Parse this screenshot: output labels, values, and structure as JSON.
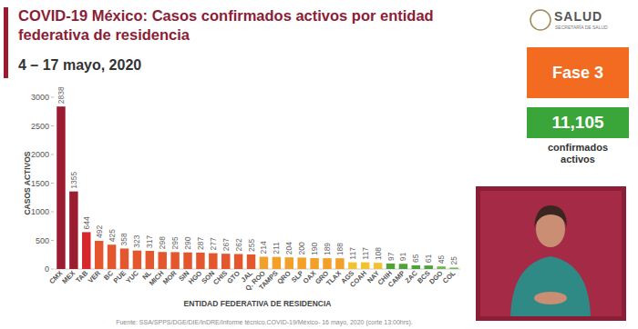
{
  "chart_data": {
    "type": "bar",
    "title": "COVID-19 México: Casos confirmados activos por entidad federativa de residencia",
    "subtitle": "4 – 17 mayo, 2020",
    "x_label": "ENTIDAD FEDERATIVA DE RESIDENCIA",
    "y_label": "CASOS ACTIVOS",
    "categories": [
      "CMX",
      "MEX",
      "TAB",
      "VER",
      "BC",
      "PUE",
      "YUC",
      "NL",
      "MICH",
      "MOR",
      "SIN",
      "HGO",
      "SON",
      "CHIS",
      "GTO",
      "JAL",
      "Q. ROO",
      "TAMPS",
      "QRO",
      "SLP",
      "OAX",
      "GRO",
      "TLAX",
      "AGS",
      "COAH",
      "NAY",
      "CHIH",
      "CAMP",
      "ZAC",
      "BCS",
      "DGO",
      "COL"
    ],
    "values": [
      2838,
      1355,
      644,
      492,
      425,
      358,
      323,
      317,
      298,
      295,
      290,
      287,
      277,
      267,
      262,
      255,
      214,
      211,
      204,
      200,
      190,
      189,
      188,
      117,
      117,
      108,
      97,
      91,
      65,
      61,
      45,
      25
    ],
    "colors": [
      "#9b1b30",
      "#9b1b30",
      "#d7262c",
      "#e4572e",
      "#e4572e",
      "#e4572e",
      "#e4572e",
      "#e4572e",
      "#e4572e",
      "#e4572e",
      "#e4572e",
      "#e4572e",
      "#e4572e",
      "#e4572e",
      "#e4572e",
      "#e4572e",
      "#f3a02b",
      "#f3a02b",
      "#f3a02b",
      "#f3a02b",
      "#f3a02b",
      "#f3a02b",
      "#f3a02b",
      "#f2c230",
      "#f2c230",
      "#f2c230",
      "#4fa23a",
      "#4fa23a",
      "#4fa23a",
      "#4fa23a",
      "#6dbb4a",
      "#6dbb4a"
    ],
    "ylim": [
      0,
      3000
    ],
    "yticks": [
      0,
      500,
      1000,
      1500,
      2000,
      2500,
      3000
    ],
    "grid": false,
    "data_labels": true
  },
  "header": {
    "logo": "SALUD",
    "logo_sub": "SECRETARÍA DE SALUD",
    "phase": "Fase 3",
    "total": "11,105",
    "total_caption": "confirmados activos"
  },
  "footer": {
    "source": "Fuente: SSA/SPPS/DGE/DIE/InDRE/Informe técnico.COVID-19/México- 16 mayo, 2020 (corte 13:00hrs)."
  }
}
